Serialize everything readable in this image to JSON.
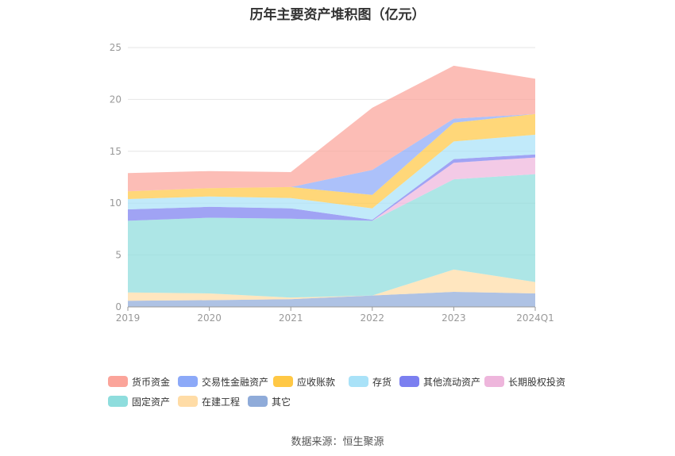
{
  "title": "历年主要资产堆积图（亿元）",
  "source_text": "数据来源：恒生聚源",
  "chart_data": {
    "type": "area",
    "stacked": true,
    "categories": [
      "2019",
      "2020",
      "2021",
      "2022",
      "2023",
      "2024Q1"
    ],
    "ylim": [
      0,
      25
    ],
    "yticks": [
      0,
      5,
      10,
      15,
      20,
      25
    ],
    "grid": true,
    "legend_position": "bottom",
    "series": [
      {
        "name": "其它",
        "color": "#8fabd9",
        "values": [
          0.6,
          0.65,
          0.75,
          1.1,
          1.45,
          1.3
        ]
      },
      {
        "name": "在建工程",
        "color": "#ffdca6",
        "values": [
          0.8,
          0.65,
          0.15,
          0.0,
          2.15,
          1.1
        ]
      },
      {
        "name": "固定资产",
        "color": "#8edddd",
        "values": [
          6.9,
          7.3,
          7.6,
          7.2,
          8.7,
          10.4
        ]
      },
      {
        "name": "长期股权投资",
        "color": "#eeb6dc",
        "values": [
          0.0,
          0.0,
          0.0,
          0.0,
          1.6,
          1.6
        ]
      },
      {
        "name": "其他流动资产",
        "color": "#7b7ff0",
        "values": [
          1.1,
          1.05,
          1.0,
          0.1,
          0.35,
          0.3
        ]
      },
      {
        "name": "存货",
        "color": "#a9e2f8",
        "values": [
          1.0,
          1.0,
          1.0,
          1.1,
          1.7,
          1.9
        ]
      },
      {
        "name": "应收账款",
        "color": "#ffc845",
        "values": [
          0.75,
          0.8,
          1.05,
          1.3,
          1.8,
          2.0
        ]
      },
      {
        "name": "交易性金融资产",
        "color": "#8ca9f8",
        "values": [
          0.0,
          0.0,
          0.0,
          2.4,
          0.4,
          0.0
        ]
      },
      {
        "name": "货币资金",
        "color": "#fba49a",
        "values": [
          1.75,
          1.65,
          1.45,
          6.0,
          5.1,
          3.4
        ]
      }
    ],
    "legend_order": [
      "货币资金",
      "交易性金融资产",
      "应收账款",
      "存货",
      "其他流动资产",
      "长期股权投资",
      "固定资产",
      "在建工程",
      "其它"
    ]
  }
}
